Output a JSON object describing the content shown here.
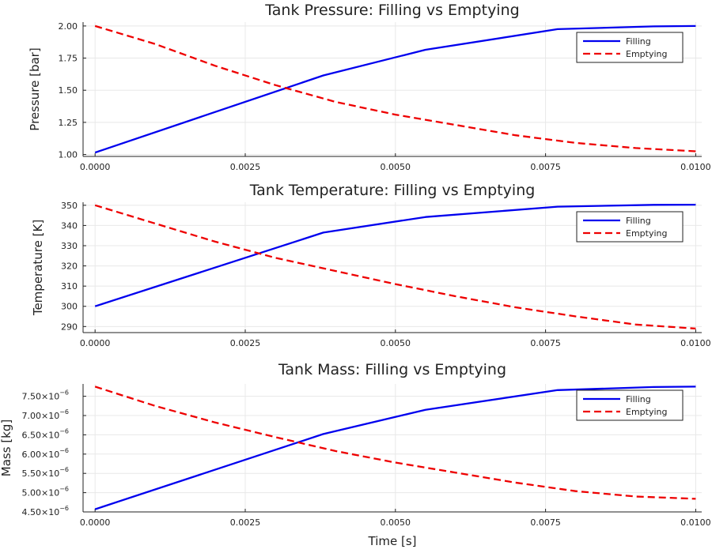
{
  "chart_data": [
    {
      "type": "line",
      "title": "Tank Pressure: Filling vs Emptying",
      "xlabel": "",
      "ylabel": "Pressure [bar]",
      "xlim": [
        -0.0002,
        0.0101
      ],
      "ylim": [
        0.985,
        2.03
      ],
      "xticks": [
        0,
        0.0025,
        0.005,
        0.0075,
        0.01
      ],
      "xtick_labels": [
        "0.0000",
        "0.0025",
        "0.0050",
        "0.0075",
        "0.0100"
      ],
      "yticks": [
        1.0,
        1.25,
        1.5,
        1.75,
        2.0
      ],
      "ytick_labels": [
        "1.00",
        "1.25",
        "1.50",
        "1.75",
        "2.00"
      ],
      "grid": true,
      "legend": "top-right",
      "series": [
        {
          "name": "Filling",
          "color": "#0000ee",
          "dash": "solid",
          "x": [
            0,
            0.0038,
            0.0055,
            0.0077,
            0.0093,
            0.01
          ],
          "y": [
            1.015,
            1.615,
            1.815,
            1.975,
            1.997,
            2.0
          ]
        },
        {
          "name": "Emptying",
          "color": "#ee0000",
          "dash": "dashed",
          "x": [
            0,
            0.001,
            0.002,
            0.003,
            0.004,
            0.005,
            0.006,
            0.007,
            0.008,
            0.009,
            0.01
          ],
          "y": [
            2.0,
            1.86,
            1.69,
            1.54,
            1.41,
            1.31,
            1.23,
            1.15,
            1.09,
            1.05,
            1.025
          ]
        }
      ]
    },
    {
      "type": "line",
      "title": "Tank Temperature: Filling vs Emptying",
      "xlabel": "",
      "ylabel": "Temperature [K]",
      "xlim": [
        -0.0002,
        0.0101
      ],
      "ylim": [
        287,
        351.5
      ],
      "xticks": [
        0,
        0.0025,
        0.005,
        0.0075,
        0.01
      ],
      "xtick_labels": [
        "0.0000",
        "0.0025",
        "0.0050",
        "0.0075",
        "0.0100"
      ],
      "yticks": [
        290,
        300,
        310,
        320,
        330,
        340,
        350
      ],
      "ytick_labels": [
        "290",
        "300",
        "310",
        "320",
        "330",
        "340",
        "350"
      ],
      "grid": true,
      "legend": "top-right",
      "series": [
        {
          "name": "Filling",
          "color": "#0000ee",
          "dash": "solid",
          "x": [
            0,
            0.0038,
            0.0055,
            0.0077,
            0.0093,
            0.01
          ],
          "y": [
            300,
            336.5,
            344.2,
            349.3,
            350.2,
            350.3
          ]
        },
        {
          "name": "Emptying",
          "color": "#ee0000",
          "dash": "dashed",
          "x": [
            0,
            0.001,
            0.002,
            0.003,
            0.004,
            0.005,
            0.006,
            0.007,
            0.008,
            0.009,
            0.01
          ],
          "y": [
            350,
            341,
            332,
            324,
            317.5,
            311,
            305,
            299.5,
            295,
            291,
            289
          ]
        }
      ]
    },
    {
      "type": "line",
      "title": "Tank Mass: Filling vs Emptying",
      "xlabel": "Time [s]",
      "ylabel": "Mass [kg]",
      "xlim": [
        -0.0002,
        0.0101
      ],
      "ylim": [
        4.5e-06,
        7.82e-06
      ],
      "xticks": [
        0,
        0.0025,
        0.005,
        0.0075,
        0.01
      ],
      "xtick_labels": [
        "0.0000",
        "0.0025",
        "0.0050",
        "0.0075",
        "0.0100"
      ],
      "yticks": [
        4.5e-06,
        5e-06,
        5.5e-06,
        6e-06,
        6.5e-06,
        7e-06,
        7.5e-06
      ],
      "ytick_labels": [
        "4.50×10",
        "5.00×10",
        "5.50×10",
        "6.00×10",
        "6.50×10",
        "7.00×10",
        "7.50×10"
      ],
      "ytick_exponent": "−6",
      "grid": true,
      "legend": "top-right",
      "series": [
        {
          "name": "Filling",
          "color": "#0000ee",
          "dash": "solid",
          "x": [
            0,
            0.0038,
            0.0055,
            0.0077,
            0.0093,
            0.01
          ],
          "y": [
            4.57e-06,
            6.52e-06,
            7.15e-06,
            7.66e-06,
            7.74e-06,
            7.75e-06
          ]
        },
        {
          "name": "Emptying",
          "color": "#ee0000",
          "dash": "dashed",
          "x": [
            0,
            0.001,
            0.002,
            0.003,
            0.004,
            0.005,
            0.006,
            0.007,
            0.008,
            0.009,
            0.01
          ],
          "y": [
            7.75e-06,
            7.25e-06,
            6.82e-06,
            6.44e-06,
            6.08e-06,
            5.78e-06,
            5.52e-06,
            5.26e-06,
            5.04e-06,
            4.9e-06,
            4.84e-06
          ]
        }
      ]
    }
  ]
}
